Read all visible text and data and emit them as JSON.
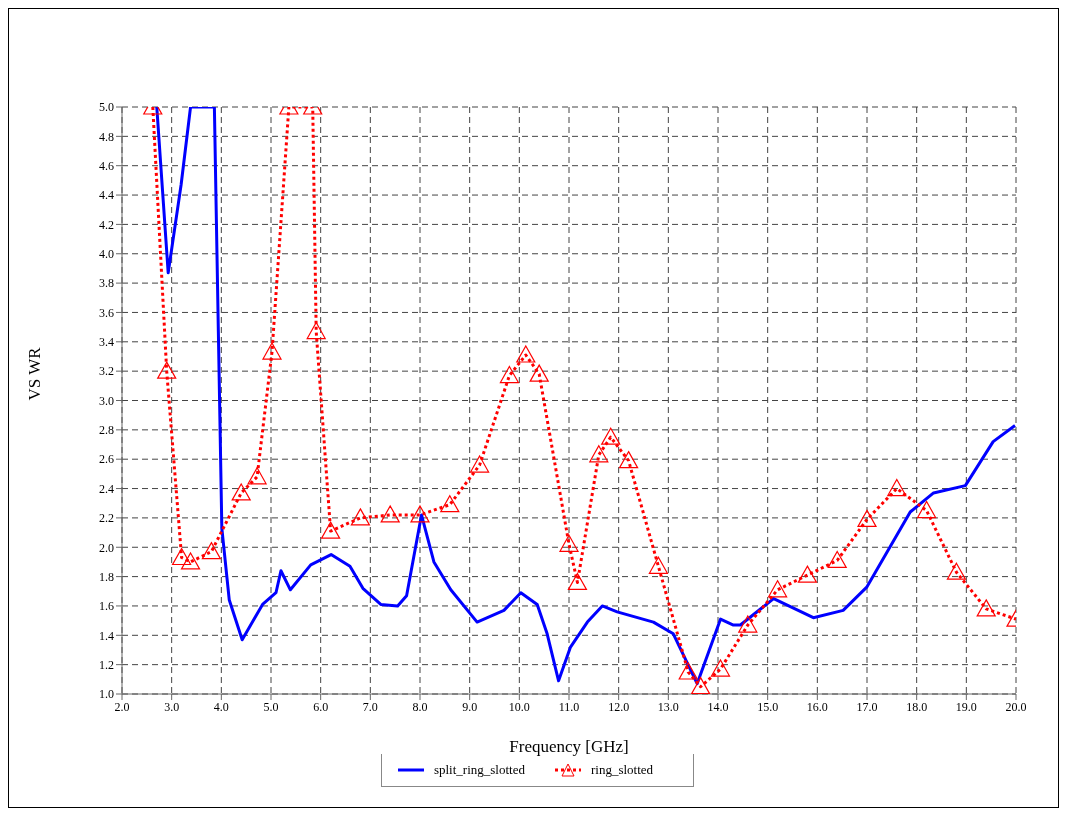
{
  "chart_data": {
    "type": "line",
    "xlabel": "Frequency [GHz]",
    "ylabel": "VS WR",
    "xlim": [
      2.0,
      20.0
    ],
    "xticks": [
      {
        "value": 2,
        "label": "2.0"
      },
      {
        "value": 3,
        "label": "3.0"
      },
      {
        "value": 4,
        "label": "4.0"
      },
      {
        "value": 5,
        "label": "5.0"
      },
      {
        "value": 6,
        "label": "6.0"
      },
      {
        "value": 7,
        "label": "7.0"
      },
      {
        "value": 8,
        "label": "8.0"
      },
      {
        "value": 9,
        "label": "9.0"
      },
      {
        "value": 10,
        "label": "10.0"
      },
      {
        "value": 11,
        "label": "11.0"
      },
      {
        "value": 12,
        "label": "12.0"
      },
      {
        "value": 13,
        "label": "13.0"
      },
      {
        "value": 14,
        "label": "14.0"
      },
      {
        "value": 15,
        "label": "15.0"
      },
      {
        "value": 16,
        "label": "16.0"
      },
      {
        "value": 17,
        "label": "17.0"
      },
      {
        "value": 18,
        "label": "18.0"
      },
      {
        "value": 19,
        "label": "19.0"
      },
      {
        "value": 20,
        "label": "20.0"
      }
    ],
    "ylim": [
      1.0,
      5.0
    ],
    "yticks": [
      {
        "value": 1,
        "label": "1.0"
      },
      {
        "value": 1.2,
        "label": "1.2"
      },
      {
        "value": 1.4,
        "label": "1.4"
      },
      {
        "value": 1.6,
        "label": "1.6"
      },
      {
        "value": 1.8,
        "label": "1.8"
      },
      {
        "value": 2,
        "label": "2.0"
      },
      {
        "value": 2.2,
        "label": "2.2"
      },
      {
        "value": 2.4,
        "label": "2.4"
      },
      {
        "value": 2.6,
        "label": "2.6"
      },
      {
        "value": 2.8,
        "label": "2.8"
      },
      {
        "value": 3,
        "label": "3.0"
      },
      {
        "value": 3.2,
        "label": "3.2"
      },
      {
        "value": 3.4,
        "label": "3.4"
      },
      {
        "value": 3.6,
        "label": "3.6"
      },
      {
        "value": 3.8,
        "label": "3.8"
      },
      {
        "value": 4,
        "label": "4.0"
      },
      {
        "value": 4.2,
        "label": "4.2"
      },
      {
        "value": 4.4,
        "label": "4.4"
      },
      {
        "value": 4.6,
        "label": "4.6"
      },
      {
        "value": 4.8,
        "label": "4.8"
      },
      {
        "value": 5,
        "label": "5.0"
      }
    ],
    "grid": true,
    "legend": "bottom",
    "series": [
      {
        "name": "split_ring_slotted",
        "color": "#0000ff",
        "marker": "none",
        "line_style": "solid",
        "x": [
          2.7,
          2.93,
          3.19,
          3.38,
          3.86,
          3.94,
          4.01,
          4.16,
          4.42,
          4.83,
          5.1,
          5.2,
          5.39,
          5.8,
          6.21,
          6.59,
          6.85,
          7.21,
          7.55,
          7.73,
          8.03,
          8.28,
          8.62,
          9.15,
          9.69,
          10.03,
          10.36,
          10.56,
          10.79,
          11.03,
          11.37,
          11.67,
          11.97,
          12.7,
          13.1,
          13.58,
          14.05,
          14.31,
          14.45,
          15.12,
          15.92,
          16.52,
          17.0,
          17.87,
          18.34,
          18.98,
          19.54,
          19.98
        ],
        "values": [
          5.0,
          3.87,
          4.47,
          5.0,
          5.0,
          3.47,
          2.13,
          1.64,
          1.37,
          1.61,
          1.69,
          1.84,
          1.71,
          1.88,
          1.95,
          1.87,
          1.72,
          1.61,
          1.6,
          1.67,
          2.22,
          1.9,
          1.71,
          1.49,
          1.57,
          1.69,
          1.61,
          1.41,
          1.09,
          1.32,
          1.49,
          1.6,
          1.56,
          1.49,
          1.41,
          1.07,
          1.51,
          1.47,
          1.47,
          1.65,
          1.52,
          1.57,
          1.73,
          2.24,
          2.37,
          2.42,
          2.72,
          2.83
        ]
      },
      {
        "name": "ring_slotted",
        "color": "#ff0000",
        "marker": "triangle",
        "line_style": "dotted",
        "x": [
          2.62,
          2.9,
          3.2,
          3.38,
          3.8,
          4.4,
          4.72,
          5.02,
          5.36,
          5.84,
          5.91,
          6.2,
          6.8,
          7.4,
          8.0,
          8.6,
          9.2,
          9.8,
          10.13,
          10.4,
          11.0,
          11.17,
          11.6,
          11.84,
          12.2,
          12.8,
          13.4,
          13.65,
          14.05,
          14.6,
          15.2,
          15.8,
          16.4,
          17.0,
          17.6,
          18.2,
          18.8,
          19.4,
          20.0
        ],
        "values": [
          5.0,
          3.2,
          1.93,
          1.9,
          1.97,
          2.37,
          2.48,
          3.33,
          5.0,
          5.0,
          3.47,
          2.11,
          2.2,
          2.22,
          2.22,
          2.29,
          2.56,
          3.17,
          3.31,
          3.18,
          2.02,
          1.76,
          2.63,
          2.75,
          2.59,
          1.87,
          1.15,
          1.05,
          1.17,
          1.47,
          1.71,
          1.81,
          1.91,
          2.19,
          2.4,
          2.25,
          1.83,
          1.58,
          1.51
        ]
      }
    ]
  }
}
